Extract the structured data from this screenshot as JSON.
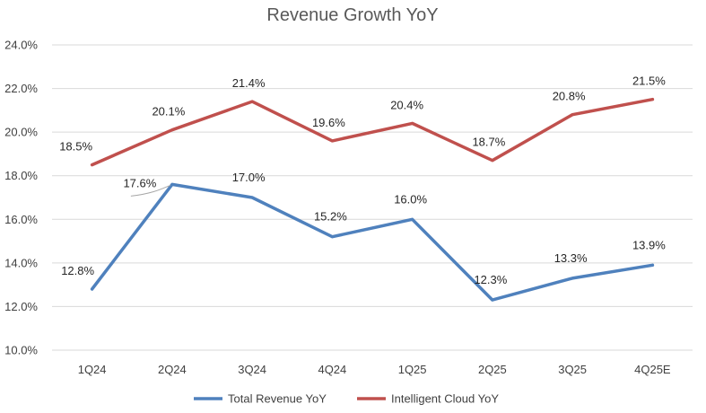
{
  "chart_data": {
    "type": "line",
    "title": "Revenue Growth YoY",
    "xlabel": "",
    "ylabel": "",
    "categories": [
      "1Q24",
      "2Q24",
      "3Q24",
      "4Q24",
      "1Q25",
      "2Q25",
      "3Q25",
      "4Q25E"
    ],
    "ylim": [
      10,
      24
    ],
    "ystep": 2,
    "ytick_labels": [
      "10.0%",
      "12.0%",
      "14.0%",
      "16.0%",
      "18.0%",
      "20.0%",
      "22.0%",
      "24.0%"
    ],
    "grid": true,
    "legend": "bottom",
    "series": [
      {
        "name": "Total Revenue YoY",
        "color": "#4f81bd",
        "values": [
          12.8,
          17.6,
          17.0,
          15.2,
          16.0,
          12.3,
          13.3,
          13.9
        ],
        "labels": [
          "12.8%",
          "17.6%",
          "17.0%",
          "15.2%",
          "16.0%",
          "12.3%",
          "13.3%",
          "13.9%"
        ]
      },
      {
        "name": "Intelligent Cloud YoY",
        "color": "#c0504d",
        "values": [
          18.5,
          20.1,
          21.4,
          19.6,
          20.4,
          18.7,
          20.8,
          21.5
        ],
        "labels": [
          "18.5%",
          "20.1%",
          "21.4%",
          "19.6%",
          "20.4%",
          "18.7%",
          "20.8%",
          "21.5%"
        ]
      }
    ]
  }
}
